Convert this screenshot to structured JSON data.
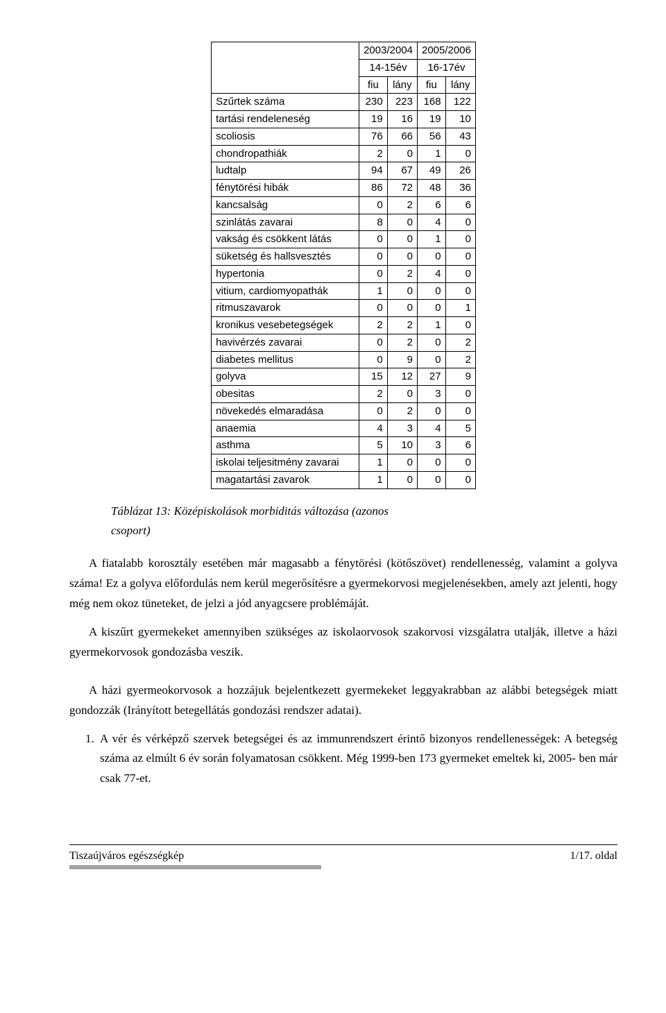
{
  "table": {
    "year_groups": [
      "2003/2004",
      "2005/2006"
    ],
    "age_groups": [
      "14-15év",
      "16-17év"
    ],
    "sex_headers": [
      "fiu",
      "lány",
      "fiu",
      "lány"
    ],
    "rows": [
      {
        "label": "Szűrtek száma",
        "v": [
          "230",
          "223",
          "168",
          "122"
        ]
      },
      {
        "label": "tartási rendeleneség",
        "v": [
          "19",
          "16",
          "19",
          "10"
        ]
      },
      {
        "label": "scoliosis",
        "v": [
          "76",
          "66",
          "56",
          "43"
        ]
      },
      {
        "label": "chondropathiák",
        "v": [
          "2",
          "0",
          "1",
          "0"
        ]
      },
      {
        "label": "ludtalp",
        "v": [
          "94",
          "67",
          "49",
          "26"
        ]
      },
      {
        "label": "fénytörési hibák",
        "v": [
          "86",
          "72",
          "48",
          "36"
        ]
      },
      {
        "label": "kancsalság",
        "v": [
          "0",
          "2",
          "6",
          "6"
        ]
      },
      {
        "label": "szinlátás zavarai",
        "v": [
          "8",
          "0",
          "4",
          "0"
        ]
      },
      {
        "label": "vakság és csökkent látás",
        "v": [
          "0",
          "0",
          "1",
          "0"
        ]
      },
      {
        "label": "süketség és hallsvesztés",
        "v": [
          "0",
          "0",
          "0",
          "0"
        ]
      },
      {
        "label": "hypertonia",
        "v": [
          "0",
          "2",
          "4",
          "0"
        ]
      },
      {
        "label": "vitium, cardiomyopathák",
        "v": [
          "1",
          "0",
          "0",
          "0"
        ]
      },
      {
        "label": "ritmuszavarok",
        "v": [
          "0",
          "0",
          "0",
          "1"
        ]
      },
      {
        "label": "kronikus vesebetegségek",
        "v": [
          "2",
          "2",
          "1",
          "0"
        ]
      },
      {
        "label": "havivérzés zavarai",
        "v": [
          "0",
          "2",
          "0",
          "2"
        ]
      },
      {
        "label": "diabetes mellitus",
        "v": [
          "0",
          "9",
          "0",
          "2"
        ]
      },
      {
        "label": "golyva",
        "v": [
          "15",
          "12",
          "27",
          "9"
        ]
      },
      {
        "label": "obesitas",
        "v": [
          "2",
          "0",
          "3",
          "0"
        ]
      },
      {
        "label": "növekedés elmaradása",
        "v": [
          "0",
          "2",
          "0",
          "0"
        ]
      },
      {
        "label": "anaemia",
        "v": [
          "4",
          "3",
          "4",
          "5"
        ]
      },
      {
        "label": "asthma",
        "v": [
          "5",
          "10",
          "3",
          "6"
        ]
      },
      {
        "label": "iskolai teljesitmény  zavarai",
        "v": [
          "1",
          "0",
          "0",
          "0"
        ]
      },
      {
        "label": "magatartási  zavarok",
        "v": [
          "1",
          "0",
          "0",
          "0"
        ]
      }
    ]
  },
  "caption_line1": "Táblázat 13: Középiskolások morbiditás változása (azonos",
  "caption_line2": "csoport)",
  "para1": "A fiatalabb korosztály esetében már magasabb a fénytörési (kötőszövet) rendellenesség, valamint a golyva száma! Ez a golyva előfordulás nem kerül megerősítésre a gyermekorvosi megjelenésekben, amely azt jelenti, hogy még nem okoz tüneteket, de jelzi a jód anyagcsere problémáját.",
  "para2": "A kiszűrt gyermekeket amennyiben szükséges az iskolaorvosok szakorvosi vizsgálatra utalják, illetve a házi gyermekorvosok gondozásba veszik.",
  "para3": "A házi gyermeokorvosok a hozzájuk bejelentkezett gyermekeket leggyakrabban az alábbi betegségek miatt gondozzák (Irányított betegellátás gondozási rendszer adatai).",
  "list_item1": "A vér és vérképző szervek betegségei és az immunrendszert érintő bizonyos rendellenességek: A betegség száma az elmúlt 6 év során folyamatosan csökkent. Még 1999-ben 173 gyermeket emeltek ki, 2005- ben már csak 77-et.",
  "footer_left": "Tiszaújváros egészségkép",
  "footer_right": "1/17. oldal"
}
